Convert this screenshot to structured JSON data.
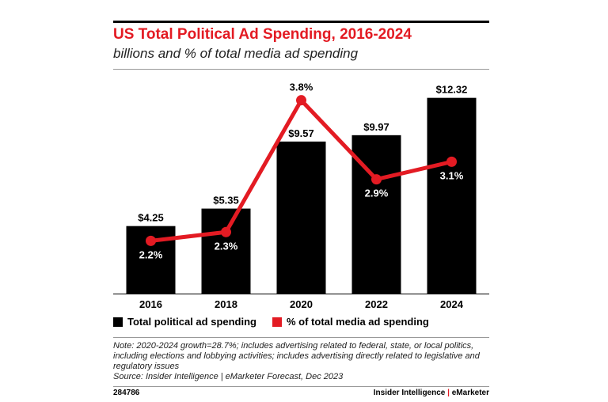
{
  "header": {
    "title": "US Total Political Ad Spending, 2016-2024",
    "subtitle": "billions and % of total media ad spending"
  },
  "legend": {
    "bar_label": "Total political ad spending",
    "line_label": "% of total media ad spending"
  },
  "footer": {
    "note": "Note: 2020-2024 growth=28.7%; includes advertising related to federal, state, or local politics, including elections and lobbying activities; includes advertising directly related to legislative and regulatory issues",
    "source": "Source: Insider Intelligence | eMarketer Forecast, Dec 2023",
    "code": "284786",
    "brand_left": "Insider Intelligence",
    "brand_sep": "|",
    "brand_right": "eMarketer"
  },
  "colors": {
    "accent": "#e31b23",
    "bar": "#000000"
  },
  "chart_data": {
    "type": "bar",
    "categories": [
      "2016",
      "2018",
      "2020",
      "2022",
      "2024"
    ],
    "series": [
      {
        "name": "Total political ad spending",
        "type": "bar",
        "values": [
          4.25,
          5.35,
          9.57,
          9.97,
          12.32
        ],
        "labels": [
          "$4.25",
          "$5.35",
          "$9.57",
          "$9.97",
          "$12.32"
        ]
      },
      {
        "name": "% of total media ad spending",
        "type": "line",
        "values": [
          2.2,
          2.3,
          3.8,
          2.9,
          3.1
        ],
        "labels": [
          "2.2%",
          "2.3%",
          "3.8%",
          "2.9%",
          "3.1%"
        ]
      }
    ],
    "title": "US Total Political Ad Spending, 2016-2024",
    "subtitle": "billions and % of total media ad spending",
    "ylim": [
      0,
      13
    ],
    "y2lim": [
      1.6,
      3.95
    ],
    "grid": false,
    "legend_position": "bottom-left"
  }
}
